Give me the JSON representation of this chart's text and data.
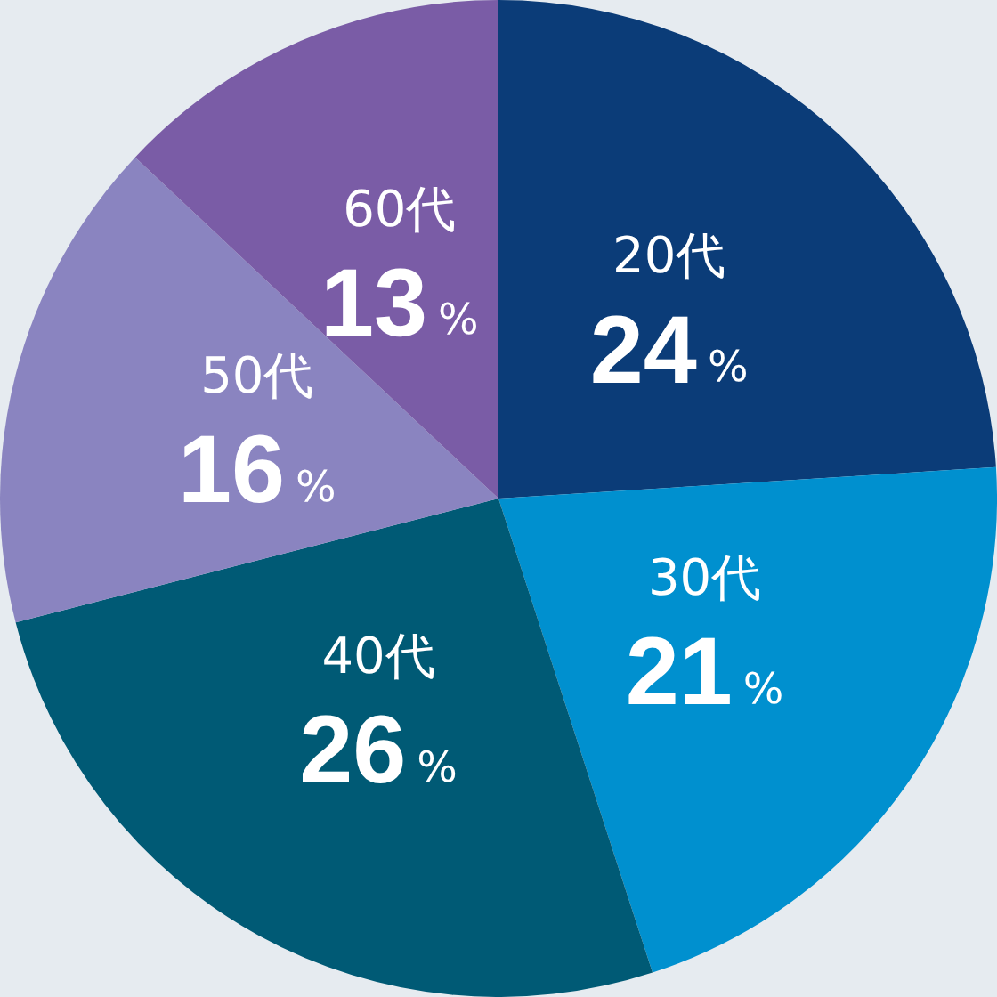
{
  "chart_data": {
    "type": "pie",
    "categories": [
      "20代",
      "30代",
      "40代",
      "50代",
      "60代"
    ],
    "values": [
      24,
      21,
      26,
      16,
      13
    ],
    "colors": [
      "#0b3c78",
      "#0090cf",
      "#005a75",
      "#8a84c0",
      "#7a5ca6"
    ],
    "value_labels": [
      "24%",
      "21%",
      "26%",
      "16%",
      "13%"
    ]
  }
}
